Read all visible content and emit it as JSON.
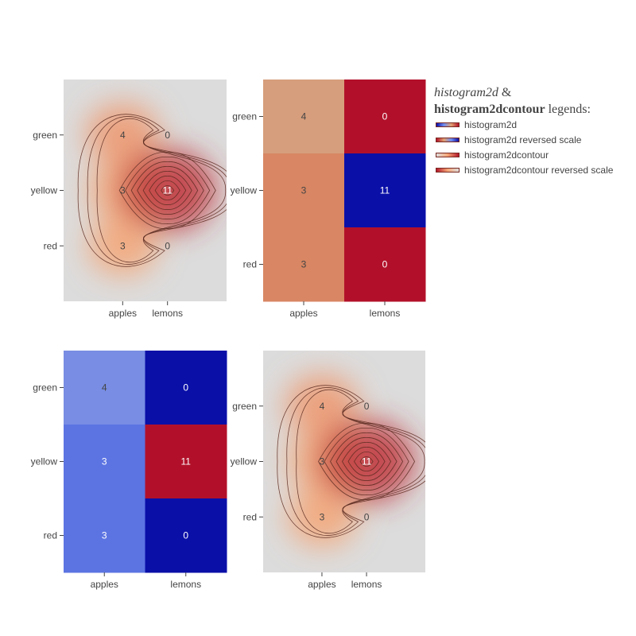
{
  "chart_data": [
    {
      "type": "heatmap",
      "variant": "histogram2dcontour",
      "colorscale": [
        "#dcdcdc",
        "#f5a676",
        "#b2172b"
      ],
      "x_categories": [
        "apples",
        "lemons"
      ],
      "y_categories": [
        "green",
        "yellow",
        "red"
      ],
      "z": [
        [
          4,
          0
        ],
        [
          3,
          11
        ],
        [
          3,
          0
        ]
      ],
      "show_contour_lines": true
    },
    {
      "type": "heatmap",
      "variant": "histogram2d",
      "colorscale": [
        "#0a0fa8",
        "#6e8bef",
        "#e0a070",
        "#b2102a"
      ],
      "reversescale": true,
      "x_categories": [
        "apples",
        "lemons"
      ],
      "y_categories": [
        "green",
        "yellow",
        "red"
      ],
      "z": [
        [
          4,
          0
        ],
        [
          3,
          11
        ],
        [
          3,
          0
        ]
      ]
    },
    {
      "type": "heatmap",
      "variant": "histogram2d",
      "colorscale": [
        "#0a0fa8",
        "#6e8bef",
        "#e0a070",
        "#b2102a"
      ],
      "reversescale": false,
      "x_categories": [
        "apples",
        "lemons"
      ],
      "y_categories": [
        "green",
        "yellow",
        "red"
      ],
      "z": [
        [
          4,
          0
        ],
        [
          3,
          11
        ],
        [
          3,
          0
        ]
      ]
    },
    {
      "type": "heatmap",
      "variant": "histogram2dcontour",
      "colorscale": [
        "#b2172b",
        "#f5a676",
        "#dcdcdc"
      ],
      "reversescale": true,
      "x_categories": [
        "apples",
        "lemons"
      ],
      "y_categories": [
        "green",
        "yellow",
        "red"
      ],
      "z": [
        [
          4,
          0
        ],
        [
          3,
          11
        ],
        [
          3,
          0
        ]
      ],
      "show_contour_lines": true
    }
  ],
  "legend": {
    "title_italic": "histogram2d",
    "title_amp": " &",
    "title_bold": "histogram2dcontour",
    "title_rest": " legends:",
    "items": [
      {
        "label": "histogram2d",
        "gradient": [
          "#0a0fa8",
          "#6e8bef",
          "#e0a070",
          "#b2102a"
        ]
      },
      {
        "label": "histogram2d reversed scale",
        "gradient": [
          "#b2102a",
          "#e0a070",
          "#6e8bef",
          "#0a0fa8"
        ]
      },
      {
        "label": "histogram2dcontour",
        "gradient": [
          "#dcdcdc",
          "#f5a676",
          "#b2172b"
        ]
      },
      {
        "label": "histogram2dcontour reversed scale",
        "gradient": [
          "#b2172b",
          "#f5a676",
          "#dcdcdc"
        ]
      }
    ]
  }
}
